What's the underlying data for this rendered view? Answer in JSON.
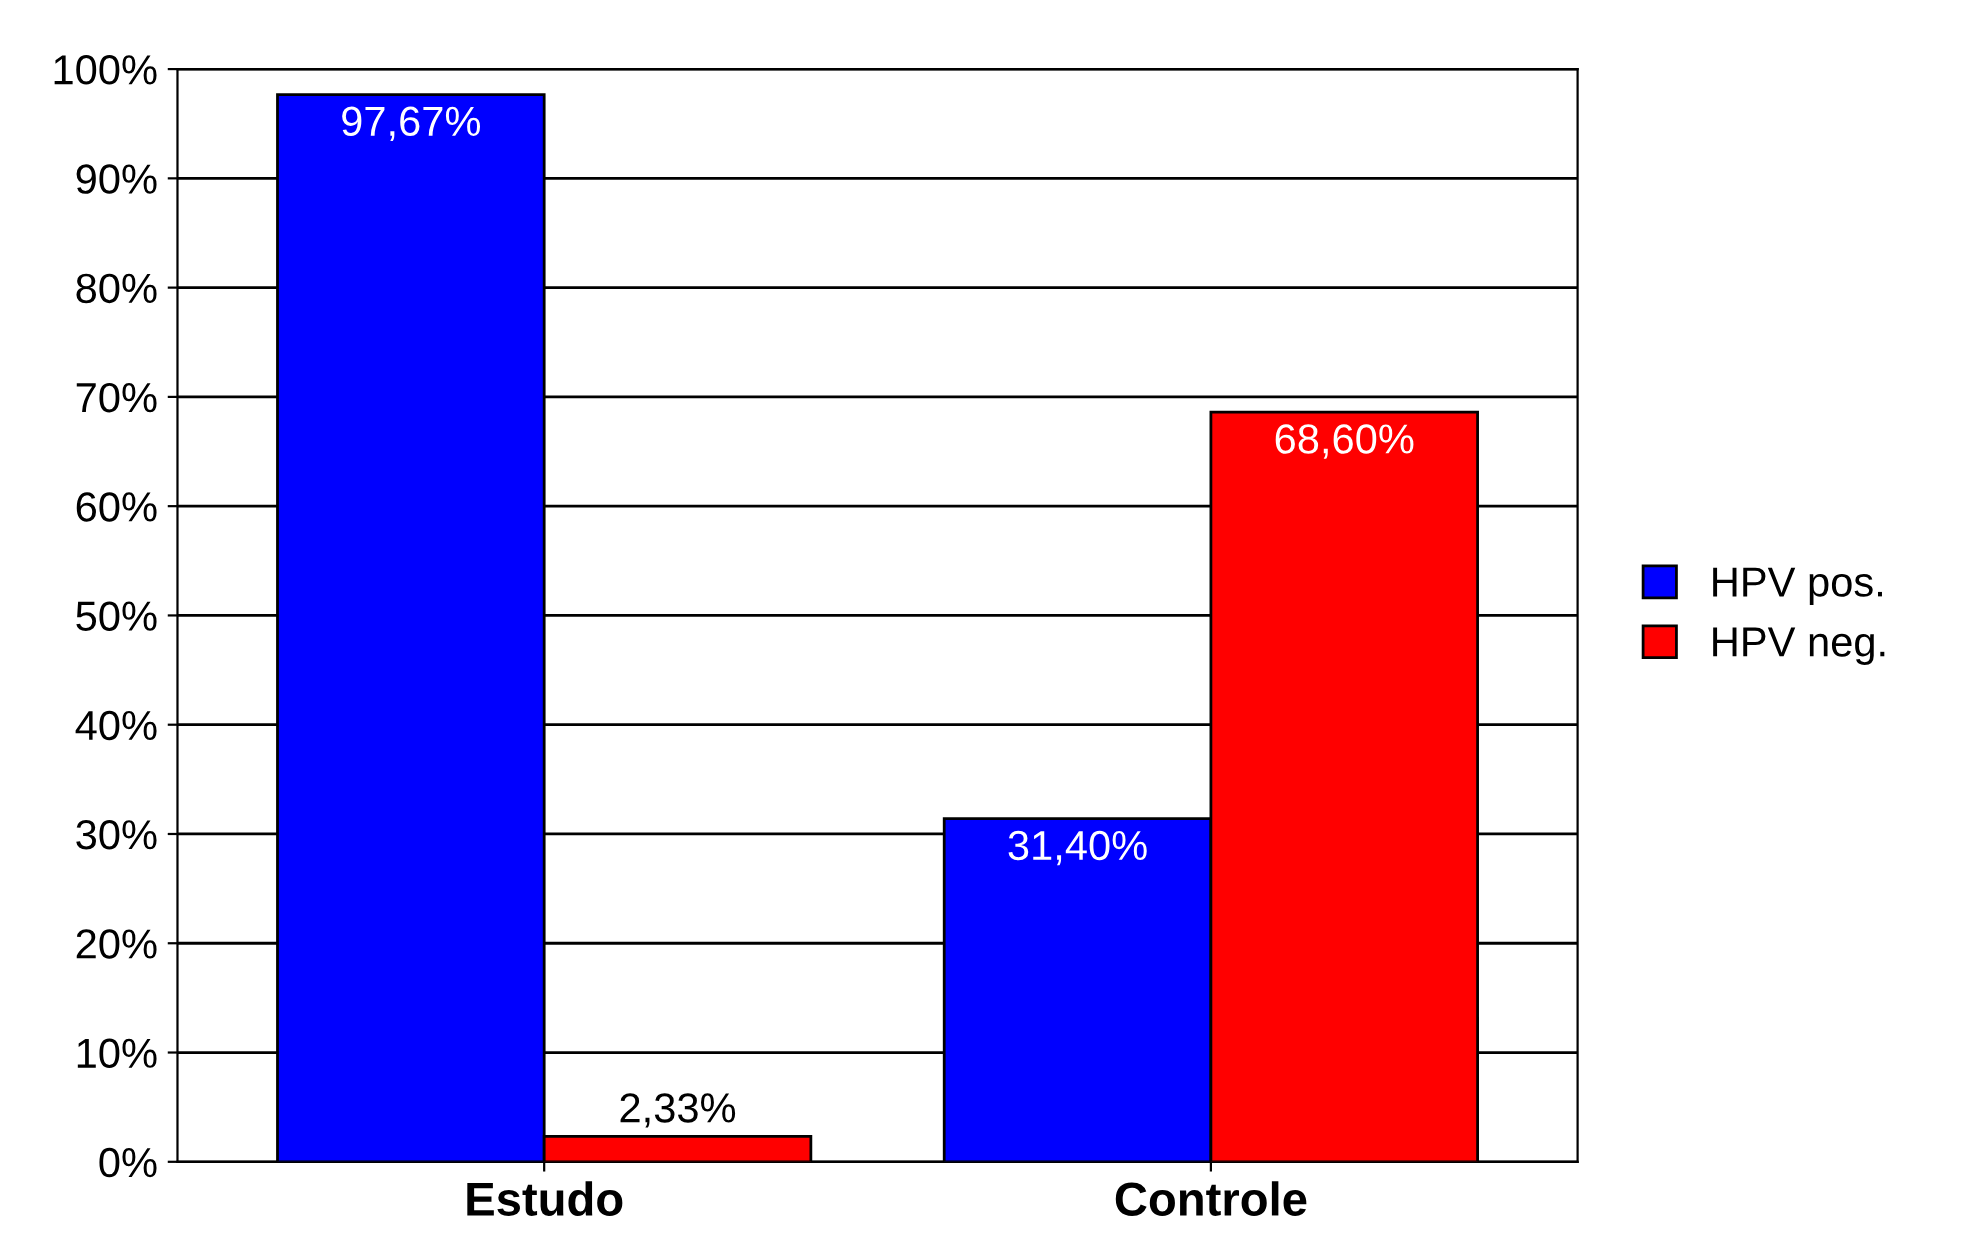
{
  "chart_data": {
    "type": "bar",
    "categories": [
      "Estudo",
      "Controle"
    ],
    "series": [
      {
        "name": "HPV pos.",
        "color": "#0000ff",
        "values": [
          97.67,
          31.4
        ],
        "value_labels": [
          "97,67%",
          "31,40%"
        ]
      },
      {
        "name": "HPV neg.",
        "color": "#ff0000",
        "values": [
          2.33,
          68.6
        ],
        "value_labels": [
          "2,33%",
          "68,60%"
        ]
      }
    ],
    "ylim": [
      0,
      100
    ],
    "yticks": [
      {
        "value": 0,
        "label": "0%"
      },
      {
        "value": 10,
        "label": "10%"
      },
      {
        "value": 20,
        "label": "20%"
      },
      {
        "value": 30,
        "label": "30%"
      },
      {
        "value": 40,
        "label": "40%"
      },
      {
        "value": 50,
        "label": "50%"
      },
      {
        "value": 60,
        "label": "60%"
      },
      {
        "value": 70,
        "label": "70%"
      },
      {
        "value": 80,
        "label": "80%"
      },
      {
        "value": 90,
        "label": "90%"
      },
      {
        "value": 100,
        "label": "100%"
      }
    ],
    "grid": "y",
    "legend": "right"
  }
}
